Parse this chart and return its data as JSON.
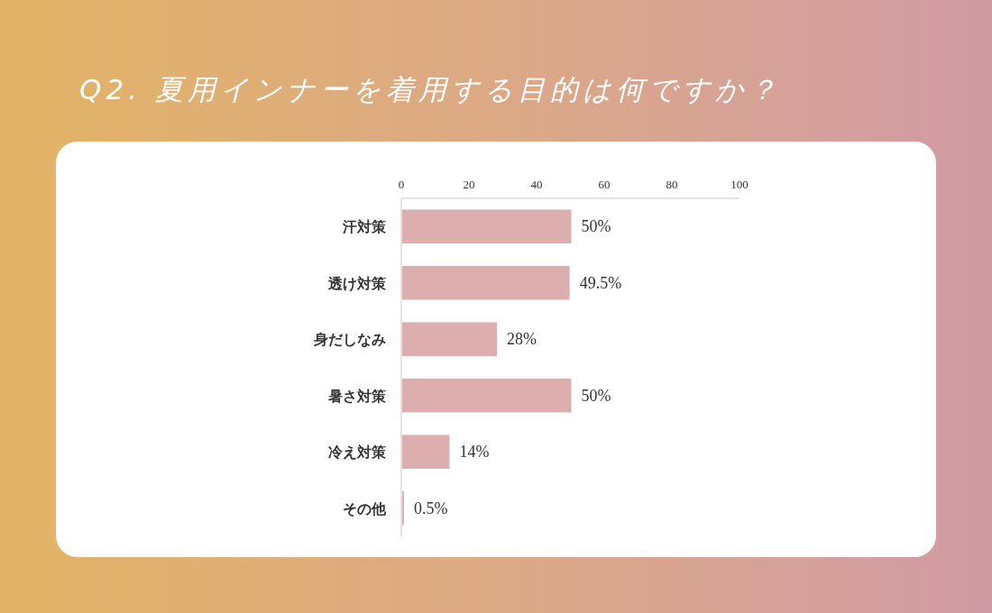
{
  "chart_data": {
    "type": "bar",
    "orientation": "horizontal",
    "title": "Q2. 夏用インナーを着用する目的は何ですか？",
    "categories": [
      "汗対策",
      "透け対策",
      "身だしなみ",
      "暑さ対策",
      "冷え対策",
      "その他"
    ],
    "values": [
      50,
      49.5,
      28,
      50,
      14,
      0.5
    ],
    "value_labels": [
      "50%",
      "49.5%",
      "28%",
      "50%",
      "14%",
      "0.5%"
    ],
    "color": "#dcaeae",
    "xlim": [
      0,
      100
    ],
    "xticks": [
      0,
      20,
      40,
      60,
      80,
      100
    ]
  }
}
